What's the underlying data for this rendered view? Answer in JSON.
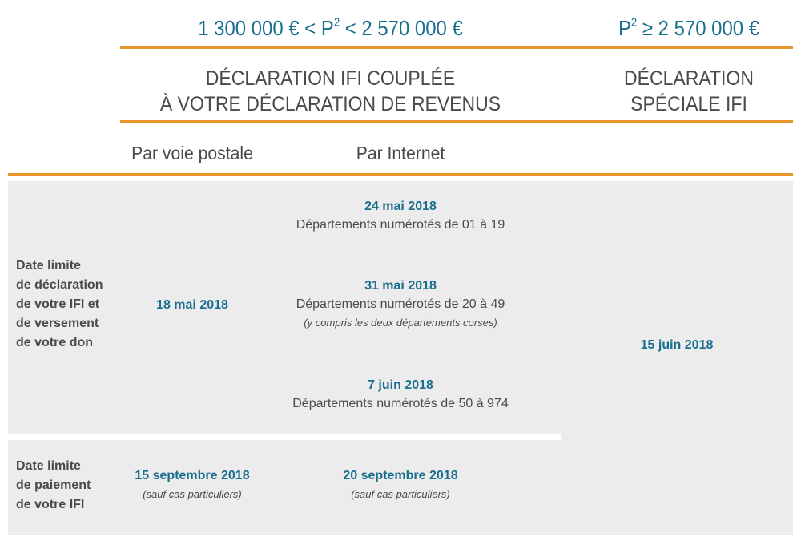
{
  "colors": {
    "accent_orange": "#e8952b",
    "date_blue": "#1a6f8f",
    "panel_gray": "#ececec",
    "text_gray": "#4a4a4a"
  },
  "header": {
    "range_left": {
      "prefix": "1 300 000 € < P",
      "sup": "2",
      "suffix": " < 2 570 000 €"
    },
    "range_right": {
      "prefix": "P",
      "sup": "2",
      "suffix": " ≥ 2 570 000 €"
    },
    "left_title": [
      "DÉCLARATION IFI COUPLÉE",
      "À VOTRE DÉCLARATION DE REVENUS"
    ],
    "right_title": [
      "DÉCLARATION",
      "SPÉCIALE IFI"
    ],
    "sub_postal": "Par voie postale",
    "sub_internet": "Par Internet"
  },
  "row1": {
    "label": [
      "Date limite",
      "de déclaration",
      "de votre IFI et",
      "de versement",
      "de votre don"
    ],
    "postal_date": "18 mai 2018",
    "internet": [
      {
        "date": "24 mai 2018",
        "desc": "Départements numérotés de 01 à 19",
        "note": ""
      },
      {
        "date": "31 mai 2018",
        "desc": "Départements numérotés de 20 à 49",
        "note": "(y compris les deux départements corses)"
      },
      {
        "date": "7 juin 2018",
        "desc": "Départements numérotés de 50 à 974",
        "note": ""
      }
    ],
    "special_date": "15 juin 2018"
  },
  "row2": {
    "label": [
      "Date limite",
      "de paiement",
      "de votre IFI"
    ],
    "postal_date": "15 septembre 2018",
    "postal_note": "(sauf cas particuliers)",
    "internet_date": "20 septembre 2018",
    "internet_note": "(sauf cas particuliers)"
  }
}
